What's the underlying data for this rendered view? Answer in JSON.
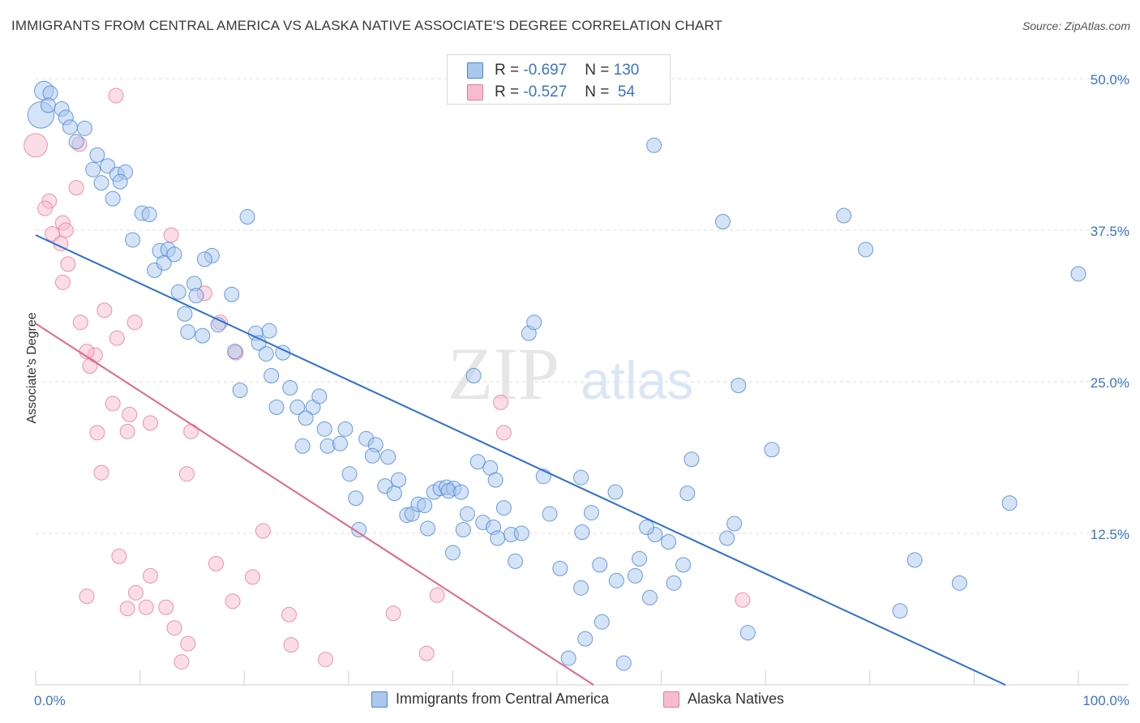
{
  "header": {
    "title": "IMMIGRANTS FROM CENTRAL AMERICA VS ALASKA NATIVE ASSOCIATE'S DEGREE CORRELATION CHART",
    "source": "Source: ZipAtlas.com"
  },
  "watermark": {
    "zip": "ZIP",
    "atlas": "atlas"
  },
  "legend": {
    "series": [
      {
        "r_label": "R =",
        "r_value": "-0.697",
        "n_label": "N =",
        "n_value": "130"
      },
      {
        "r_label": "R =",
        "r_value": "-0.527",
        "n_label": "N =",
        "n_value": " 54"
      }
    ]
  },
  "colors": {
    "blue_fill": "#aac8ee",
    "blue_stroke": "#4a86d6",
    "blue_line": "#2e6fd0",
    "pink_fill": "#f6bccd",
    "pink_stroke": "#e87a9c",
    "pink_line": "#e06690",
    "axis_text": "#3a73c8",
    "grid": "#dcdcdc"
  },
  "chart_data": {
    "type": "scatter",
    "title": "IMMIGRANTS FROM CENTRAL AMERICA VS ALASKA NATIVE ASSOCIATE'S DEGREE CORRELATION CHART",
    "xlabel": "",
    "ylabel": "Associate's Degree",
    "xlim": [
      0,
      100
    ],
    "ylim": [
      0,
      50
    ],
    "x_tick_labels": [
      "0.0%",
      "100.0%"
    ],
    "y_ticks": [
      12.5,
      25.0,
      37.5,
      50.0
    ],
    "y_tick_labels": [
      "12.5%",
      "25.0%",
      "37.5%",
      "50.0%"
    ],
    "grid": "horizontal dashed",
    "legend_position": "bottom",
    "series": [
      {
        "name": "Immigrants from Central America",
        "trend": {
          "x": [
            0,
            93
          ],
          "y": [
            37.1,
            0
          ]
        },
        "points": [
          [
            0.5,
            47,
            1.8
          ],
          [
            0.8,
            49,
            1.3
          ],
          [
            1.4,
            48.8,
            1
          ],
          [
            1.2,
            47.8,
            1
          ],
          [
            2.5,
            47.5,
            1
          ],
          [
            2.9,
            46.8,
            1
          ],
          [
            3.3,
            46,
            1
          ],
          [
            3.9,
            44.8,
            1
          ],
          [
            4.7,
            45.9,
            1
          ],
          [
            5.9,
            43.7,
            1
          ],
          [
            6.9,
            42.8,
            1
          ],
          [
            5.5,
            42.5,
            1
          ],
          [
            7.8,
            42.1,
            1
          ],
          [
            8.6,
            42.3,
            1
          ],
          [
            8.1,
            41.5,
            1
          ],
          [
            6.3,
            41.4,
            1
          ],
          [
            7.4,
            40.1,
            1
          ],
          [
            10.2,
            38.9,
            1
          ],
          [
            10.9,
            38.8,
            1
          ],
          [
            9.3,
            36.7,
            1
          ],
          [
            20.3,
            38.6,
            1
          ],
          [
            11.4,
            34.2,
            1
          ],
          [
            11.9,
            35.8,
            1
          ],
          [
            12.7,
            35.9,
            1
          ],
          [
            12.3,
            34.8,
            1
          ],
          [
            13.3,
            35.5,
            1
          ],
          [
            16.9,
            35.4,
            1
          ],
          [
            16.2,
            35.1,
            1
          ],
          [
            13.7,
            32.4,
            1
          ],
          [
            15.2,
            33.1,
            1
          ],
          [
            18.8,
            32.2,
            1
          ],
          [
            15.4,
            32.1,
            1
          ],
          [
            14.3,
            30.6,
            1
          ],
          [
            17.5,
            29.7,
            1
          ],
          [
            14.6,
            29.1,
            1
          ],
          [
            16.0,
            28.8,
            1
          ],
          [
            22.4,
            29.2,
            1
          ],
          [
            21.1,
            29.0,
            1
          ],
          [
            19.1,
            27.5,
            1
          ],
          [
            21.4,
            28.2,
            1
          ],
          [
            22.1,
            27.3,
            1
          ],
          [
            23.7,
            27.4,
            1
          ],
          [
            22.6,
            25.5,
            1
          ],
          [
            19.6,
            24.3,
            1
          ],
          [
            24.4,
            24.5,
            1
          ],
          [
            23.1,
            22.9,
            1
          ],
          [
            25.1,
            22.9,
            1
          ],
          [
            26.6,
            22.9,
            1
          ],
          [
            25.9,
            22.0,
            1
          ],
          [
            27.2,
            23.8,
            1
          ],
          [
            27.7,
            21.1,
            1
          ],
          [
            29.7,
            21.1,
            1
          ],
          [
            28.0,
            19.7,
            1
          ],
          [
            29.2,
            19.9,
            1
          ],
          [
            25.6,
            19.7,
            1
          ],
          [
            31.7,
            20.3,
            1
          ],
          [
            32.6,
            19.8,
            1
          ],
          [
            32.3,
            18.9,
            1
          ],
          [
            33.8,
            18.8,
            1
          ],
          [
            30.1,
            17.4,
            1
          ],
          [
            33.5,
            16.4,
            1
          ],
          [
            34.4,
            15.8,
            1
          ],
          [
            34.8,
            16.9,
            1
          ],
          [
            30.7,
            15.4,
            1
          ],
          [
            35.6,
            14.0,
            1
          ],
          [
            36.1,
            14.1,
            1
          ],
          [
            36.7,
            14.9,
            1
          ],
          [
            37.3,
            14.8,
            1
          ],
          [
            38.2,
            15.9,
            1
          ],
          [
            38.8,
            16.2,
            1
          ],
          [
            39.4,
            16.3,
            1
          ],
          [
            40.1,
            16.2,
            1
          ],
          [
            39.6,
            16.0,
            1
          ],
          [
            42.4,
            18.4,
            1
          ],
          [
            43.6,
            17.9,
            1
          ],
          [
            44.1,
            16.9,
            1
          ],
          [
            40.8,
            15.9,
            1
          ],
          [
            41.4,
            14.1,
            1
          ],
          [
            42.9,
            13.4,
            1
          ],
          [
            44.9,
            14.6,
            1
          ],
          [
            43.9,
            13.0,
            1
          ],
          [
            45.6,
            12.4,
            1
          ],
          [
            44.3,
            12.1,
            1
          ],
          [
            37.6,
            12.9,
            1
          ],
          [
            41.0,
            12.8,
            1
          ],
          [
            31.0,
            12.8,
            1
          ],
          [
            46.0,
            10.2,
            1
          ],
          [
            40.0,
            10.9,
            1
          ],
          [
            47.3,
            29.0,
            1
          ],
          [
            47.8,
            29.9,
            1
          ],
          [
            42.0,
            25.5,
            1
          ],
          [
            46.6,
            12.5,
            1
          ],
          [
            48.7,
            17.2,
            1
          ],
          [
            49.3,
            14.1,
            1
          ],
          [
            52.3,
            17.1,
            1
          ],
          [
            53.3,
            14.2,
            1
          ],
          [
            52.4,
            12.6,
            1
          ],
          [
            54.1,
            9.9,
            1
          ],
          [
            50.3,
            9.6,
            1
          ],
          [
            52.3,
            8.0,
            1
          ],
          [
            54.3,
            5.2,
            1
          ],
          [
            55.7,
            8.6,
            1
          ],
          [
            57.5,
            9.0,
            1
          ],
          [
            58.9,
            7.2,
            1
          ],
          [
            57.9,
            10.4,
            1
          ],
          [
            61.2,
            8.4,
            1
          ],
          [
            62.1,
            9.9,
            1
          ],
          [
            59.4,
            12.4,
            1
          ],
          [
            58.6,
            13.0,
            1
          ],
          [
            60.7,
            11.8,
            1
          ],
          [
            62.5,
            15.8,
            1
          ],
          [
            55.6,
            15.9,
            1
          ],
          [
            52.7,
            3.8,
            1
          ],
          [
            51.1,
            2.2,
            1
          ],
          [
            56.4,
            1.8,
            1
          ],
          [
            67.0,
            13.3,
            1
          ],
          [
            66.3,
            12.1,
            1
          ],
          [
            68.3,
            4.3,
            1
          ],
          [
            70.6,
            19.4,
            1
          ],
          [
            67.4,
            24.7,
            1
          ],
          [
            62.9,
            18.6,
            1
          ],
          [
            59.3,
            44.5,
            1
          ],
          [
            65.9,
            38.2,
            1
          ],
          [
            77.5,
            38.7,
            1
          ],
          [
            79.6,
            35.9,
            1
          ],
          [
            82.9,
            6.1,
            1
          ],
          [
            84.3,
            10.3,
            1
          ],
          [
            88.6,
            8.4,
            1
          ],
          [
            93.4,
            15.0,
            1
          ],
          [
            100.0,
            33.9,
            1
          ]
        ]
      },
      {
        "name": "Alaska Natives",
        "trend": {
          "x": [
            0,
            53.5
          ],
          "y": [
            29.8,
            0
          ]
        },
        "points": [
          [
            0,
            44.5,
            1.6
          ],
          [
            1.3,
            39.9,
            1
          ],
          [
            0.9,
            39.3,
            1
          ],
          [
            2.6,
            38.1,
            1
          ],
          [
            2.9,
            37.5,
            1
          ],
          [
            1.6,
            37.2,
            1
          ],
          [
            2.4,
            36.4,
            1
          ],
          [
            3.1,
            34.7,
            1
          ],
          [
            2.6,
            33.2,
            1
          ],
          [
            7.7,
            48.6,
            1
          ],
          [
            4.2,
            44.6,
            1
          ],
          [
            3.9,
            41.0,
            1
          ],
          [
            13.0,
            37.1,
            1
          ],
          [
            4.3,
            29.9,
            1
          ],
          [
            6.6,
            30.9,
            1
          ],
          [
            9.5,
            29.9,
            1
          ],
          [
            7.8,
            28.6,
            1
          ],
          [
            5.7,
            27.2,
            1
          ],
          [
            4.9,
            27.5,
            1
          ],
          [
            5.2,
            26.3,
            1
          ],
          [
            7.4,
            23.2,
            1
          ],
          [
            9.0,
            22.3,
            1
          ],
          [
            8.8,
            20.9,
            1
          ],
          [
            11.0,
            21.6,
            1
          ],
          [
            5.9,
            20.8,
            1
          ],
          [
            14.9,
            20.9,
            1
          ],
          [
            6.3,
            17.5,
            1
          ],
          [
            14.5,
            17.4,
            1
          ],
          [
            16.2,
            32.3,
            1
          ],
          [
            17.7,
            29.9,
            1
          ],
          [
            19.2,
            27.4,
            1
          ],
          [
            44.6,
            23.3,
            1
          ],
          [
            44.9,
            20.8,
            1
          ],
          [
            21.8,
            12.7,
            1
          ],
          [
            17.3,
            10.0,
            1
          ],
          [
            11.0,
            9.0,
            1
          ],
          [
            20.8,
            8.9,
            1
          ],
          [
            4.9,
            7.3,
            1
          ],
          [
            9.6,
            7.6,
            1
          ],
          [
            8.8,
            6.3,
            1
          ],
          [
            10.6,
            6.4,
            1
          ],
          [
            12.5,
            6.4,
            1
          ],
          [
            18.9,
            6.9,
            1
          ],
          [
            24.3,
            5.8,
            1
          ],
          [
            34.3,
            5.9,
            1
          ],
          [
            38.5,
            7.4,
            1
          ],
          [
            13.3,
            4.7,
            1
          ],
          [
            14.6,
            3.4,
            1
          ],
          [
            24.5,
            3.3,
            1
          ],
          [
            14.0,
            1.9,
            1
          ],
          [
            27.8,
            2.1,
            1
          ],
          [
            37.5,
            2.6,
            1
          ],
          [
            67.8,
            7.0,
            1
          ],
          [
            8.0,
            10.6,
            1
          ]
        ]
      }
    ]
  }
}
